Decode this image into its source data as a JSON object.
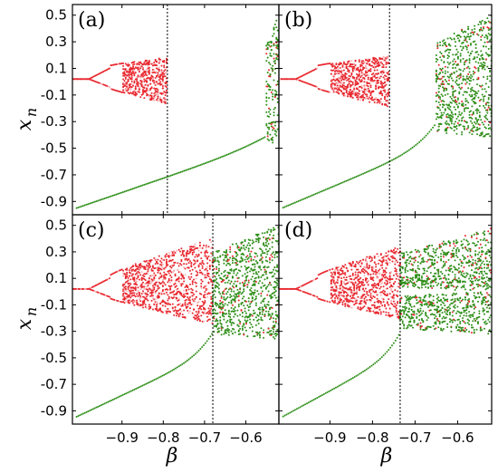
{
  "colors": {
    "red": "#e8282f",
    "green": "#2f8f1a",
    "pink": "#f6b4b8",
    "frame": "#000000"
  },
  "chart_data": {
    "type": "scatter",
    "xlabel": "β",
    "ylabel_main": "x",
    "ylabel_sub": "n",
    "xlim": [
      -1.02,
      -0.52
    ],
    "ylim": [
      -1.0,
      0.58
    ],
    "xticks": [
      -0.9,
      -0.8,
      -0.7,
      -0.6
    ],
    "xtick_labels": [
      "−0.9",
      "−0.8",
      "−0.7",
      "−0.6"
    ],
    "yticks": [
      0.5,
      0.3,
      0.1,
      -0.1,
      -0.3,
      -0.5,
      -0.7,
      -0.9
    ],
    "ytick_labels": [
      "0.5",
      "0.3",
      "0.1",
      "-0.1",
      "-0.3",
      "-0.5",
      "-0.7",
      "-0.9"
    ],
    "panels": [
      {
        "label": "(a)",
        "vline": -0.79,
        "red_end": -0.79,
        "green_band": [
          -0.55,
          -0.52
        ],
        "green_ymin": -0.45,
        "top_ymax": 0.5,
        "wings": false
      },
      {
        "label": "(b)",
        "vline": -0.76,
        "red_end": -0.76,
        "green_band": [
          -0.65,
          -0.52
        ],
        "green_ymin": -0.38,
        "top_ymax": 0.5,
        "wings": false
      },
      {
        "label": "(c)",
        "vline": -0.68,
        "red_end": -0.68,
        "green_band": [
          -0.68,
          -0.52
        ],
        "green_ymin": -0.32,
        "top_ymax": 0.5,
        "wings": false
      },
      {
        "label": "(d)",
        "vline": -0.735,
        "red_end": -0.735,
        "green_band": [
          -0.735,
          -0.52
        ],
        "green_ymin": -0.28,
        "top_ymax": 0.48,
        "wings": true
      }
    ]
  }
}
